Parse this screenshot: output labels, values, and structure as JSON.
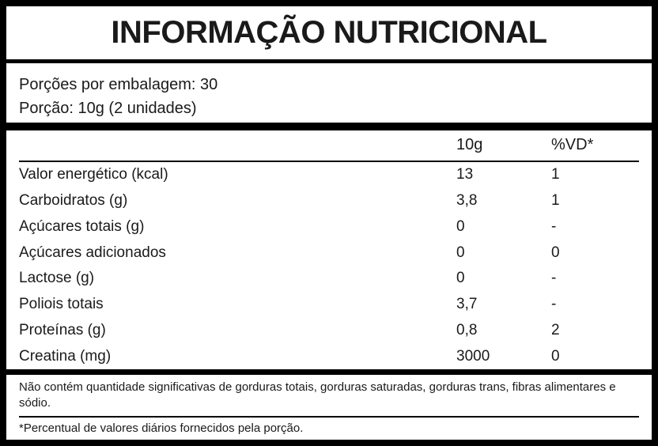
{
  "label": {
    "title": "INFORMAÇÃO NUTRICIONAL",
    "servings": {
      "per_package": "Porções por embalagem: 30",
      "serving_size": "Porção: 10g (2 unidades)"
    },
    "table": {
      "columns": [
        "10g",
        "%VD*"
      ],
      "rows": [
        {
          "name": "Valor energético (kcal)",
          "amount": "13",
          "vd": "1"
        },
        {
          "name": "Carboidratos (g)",
          "amount": "3,8",
          "vd": "1"
        },
        {
          "name": "Açúcares totais (g)",
          "amount": "0",
          "vd": "-"
        },
        {
          "name": "Açúcares adicionados",
          "amount": "0",
          "vd": "0"
        },
        {
          "name": "Lactose (g)",
          "amount": "0",
          "vd": "-"
        },
        {
          "name": "Poliois totais",
          "amount": "3,7",
          "vd": "-"
        },
        {
          "name": "Proteínas (g)",
          "amount": "0,8",
          "vd": "2"
        },
        {
          "name": "Creatina (mg)",
          "amount": "3000",
          "vd": "0"
        }
      ]
    },
    "note": "Não contém quantidade significativas de gorduras totais, gorduras saturadas, gorduras trans, fibras alimentares e sódio.",
    "footnote": "*Percentual de valores diários fornecidos pela porção.",
    "colors": {
      "border": "#000000",
      "text": "#1a1a1a",
      "background": "#ffffff"
    }
  }
}
